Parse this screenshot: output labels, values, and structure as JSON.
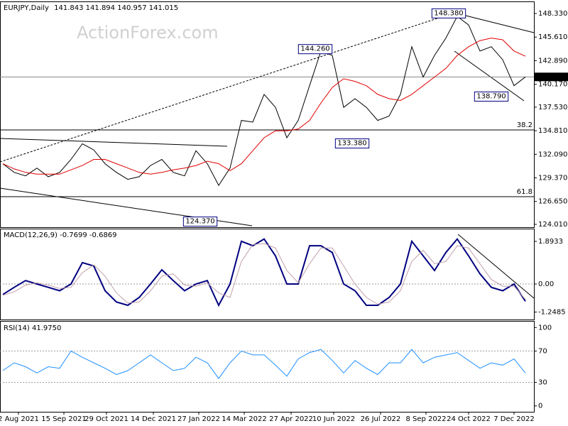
{
  "header": {
    "symbol": "EURJPY,Daily",
    "ohlc": [
      141.843,
      141.894,
      140.957,
      141.015
    ]
  },
  "watermark": "ActionForex.com",
  "chart_data": [
    {
      "type": "line",
      "x": [
        2,
        10,
        18,
        26,
        34,
        42,
        50,
        58,
        66,
        74,
        82,
        90,
        98,
        106,
        114,
        122,
        130,
        138,
        146,
        154,
        162,
        170,
        178,
        186,
        194,
        202,
        210,
        218,
        226,
        234,
        242,
        250,
        258,
        266,
        274,
        282,
        290,
        298,
        306,
        314,
        322,
        330,
        338,
        346,
        354,
        362,
        370
      ],
      "xlim": [
        0,
        376
      ],
      "series": [
        {
          "color": "#000000",
          "values": [
            131,
            130,
            129.6,
            130.5,
            129.5,
            130,
            131.5,
            133.3,
            132.6,
            131,
            130,
            129.2,
            129.5,
            130.8,
            131.5,
            130,
            129.6,
            132.5,
            131,
            128.5,
            130.5,
            136,
            135.8,
            139,
            137.5,
            134,
            136,
            140,
            144,
            143.5,
            137.5,
            138.5,
            137.5,
            136,
            136.5,
            139,
            144.5,
            141,
            143.5,
            145.5,
            148,
            147,
            144,
            144.5,
            143,
            140,
            141.015
          ]
        },
        {
          "color": "#e00000",
          "values": [
            131,
            130.4,
            130,
            129.8,
            129.8,
            129.8,
            130.3,
            130.8,
            131.5,
            131.5,
            131,
            130.5,
            130,
            129.8,
            130,
            130.3,
            130.5,
            130.8,
            131.3,
            131,
            130.2,
            131,
            132.5,
            134,
            134.8,
            134.8,
            135,
            136,
            138,
            139.8,
            140.8,
            140.5,
            140,
            139,
            138.5,
            138.3,
            139,
            140,
            141,
            142,
            143.5,
            144.5,
            145.2,
            145.5,
            145.3,
            144,
            143.4
          ]
        }
      ],
      "ylim": [
        123.68,
        149.64
      ],
      "yticks": [
        {
          "value": 148.33,
          "label": "148.330"
        },
        {
          "value": 145.61,
          "label": "145.610"
        },
        {
          "value": 142.89,
          "label": "142.890"
        },
        {
          "value": 140.17,
          "label": "140.170"
        },
        {
          "value": 137.53,
          "label": "137.530"
        },
        {
          "value": 134.81,
          "label": "134.810"
        },
        {
          "value": 132.09,
          "label": "132.090"
        },
        {
          "value": 129.37,
          "label": "129.370"
        },
        {
          "value": 126.65,
          "label": "126.650"
        },
        {
          "value": 124.01,
          "label": "124.010"
        }
      ],
      "price_labels": [
        {
          "x": 316,
          "value": 148.38,
          "label": "148.380"
        },
        {
          "x": 222,
          "value": 144.26,
          "label": "144.260"
        },
        {
          "x": 346,
          "value": 138.79,
          "label": "138.790"
        },
        {
          "x": 248,
          "value": 133.38,
          "label": "133.380"
        },
        {
          "x": 141,
          "value": 124.37,
          "label": "124.370"
        }
      ],
      "current_price": {
        "value": 141.015,
        "label": "141.015"
      },
      "fib_levels": [
        {
          "value": 134.9,
          "label": "38.2"
        },
        {
          "value": 127.2,
          "label": "61.8"
        }
      ]
    },
    {
      "type": "line",
      "title": "MACD(12,26,9)",
      "readings": [
        -0.7699,
        -0.6869
      ],
      "x": [
        2,
        10,
        18,
        26,
        34,
        42,
        50,
        58,
        66,
        74,
        82,
        90,
        98,
        106,
        114,
        122,
        130,
        138,
        146,
        154,
        162,
        170,
        178,
        186,
        194,
        202,
        210,
        218,
        226,
        234,
        242,
        250,
        258,
        266,
        274,
        282,
        290,
        298,
        306,
        314,
        322,
        330,
        338,
        346,
        354,
        362,
        370
      ],
      "xlim": [
        0,
        376
      ],
      "series": [
        {
          "color": "#000080",
          "width": 2,
          "values": [
            -0.47,
            -0.15,
            0.15,
            0,
            -0.15,
            -0.3,
            0,
            0.95,
            0.8,
            -0.3,
            -0.8,
            -0.95,
            -0.6,
            0,
            0.63,
            0.15,
            -0.3,
            0,
            0.15,
            -0.95,
            0,
            1.9,
            1.7,
            2.0,
            1.25,
            0,
            0,
            1.7,
            1.7,
            1.4,
            0,
            -0.3,
            -0.95,
            -0.95,
            -0.6,
            0,
            1.9,
            1.25,
            0.6,
            1.4,
            2.0,
            1.25,
            0.45,
            -0.15,
            -0.3,
            0,
            -0.77
          ]
        },
        {
          "color": "#c0a0a8",
          "width": 1,
          "values": [
            -0.5,
            -0.35,
            -0.05,
            0.05,
            -0.05,
            -0.2,
            -0.15,
            0.5,
            0.85,
            0.35,
            -0.4,
            -0.85,
            -0.8,
            -0.3,
            0.35,
            0.45,
            -0.05,
            -0.1,
            0.05,
            -0.4,
            -0.6,
            1.0,
            1.75,
            1.8,
            1.6,
            0.6,
            0.05,
            0.9,
            1.6,
            1.6,
            0.8,
            0,
            -0.6,
            -0.9,
            -0.8,
            -0.3,
            1.0,
            1.5,
            0.9,
            1.0,
            1.7,
            1.6,
            0.9,
            0.2,
            -0.1,
            -0.1,
            -0.69
          ]
        }
      ],
      "ylim": [
        -1.58,
        2.43
      ],
      "yticks": [
        1.8933,
        {
          "value": 0,
          "label": "0.00"
        },
        -1.2485
      ],
      "levels": [
        0
      ]
    },
    {
      "type": "line",
      "title": "RSI(14)",
      "readings": [
        {
          "value": 41.975,
          "label": "41.9750"
        }
      ],
      "x": [
        2,
        10,
        18,
        26,
        34,
        42,
        50,
        58,
        66,
        74,
        82,
        90,
        98,
        106,
        114,
        122,
        130,
        138,
        146,
        154,
        162,
        170,
        178,
        186,
        194,
        202,
        210,
        218,
        226,
        234,
        242,
        250,
        258,
        266,
        274,
        282,
        290,
        298,
        306,
        314,
        322,
        330,
        338,
        346,
        354,
        362,
        370
      ],
      "xlim": [
        0,
        376
      ],
      "series": [
        {
          "color": "#1e90ff",
          "width": 1,
          "values": [
            45,
            55,
            50,
            42,
            50,
            48,
            70,
            62,
            55,
            48,
            40,
            45,
            55,
            65,
            55,
            45,
            48,
            62,
            55,
            35,
            55,
            70,
            65,
            65,
            52,
            38,
            60,
            68,
            72,
            58,
            42,
            58,
            48,
            40,
            55,
            55,
            72,
            55,
            62,
            65,
            68,
            58,
            48,
            55,
            52,
            60,
            42
          ]
        }
      ],
      "ylim": [
        -7.5,
        107.5
      ],
      "yticks": [
        100,
        70,
        30,
        0
      ],
      "levels": [
        70,
        30
      ],
      "xticks": [
        {
          "value": 13,
          "label": "2 Aug 2021"
        },
        {
          "value": 45,
          "label": "15 Sep 2021"
        },
        {
          "value": 75,
          "label": "29 Oct 2021"
        },
        {
          "value": 108,
          "label": "14 Dec 2021"
        },
        {
          "value": 140,
          "label": "27 Jan 2022"
        },
        {
          "value": 172,
          "label": "14 Mar 2022"
        },
        {
          "value": 205,
          "label": "27 Apr 2022"
        },
        {
          "value": 235,
          "label": "10 Jun 2022"
        },
        {
          "value": 268,
          "label": "26 Jul 2022"
        },
        {
          "value": 300,
          "label": "8 Sep 2022"
        },
        {
          "value": 330,
          "label": "24 Oct 2022"
        },
        {
          "value": 362,
          "label": "7 Dec 2022"
        }
      ]
    }
  ]
}
